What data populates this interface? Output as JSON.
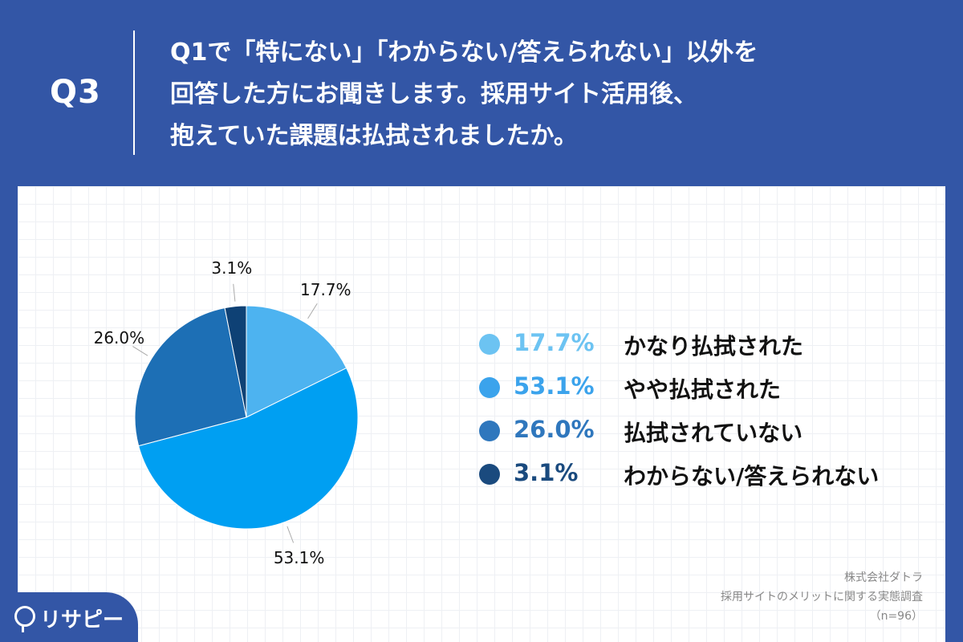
{
  "header": {
    "q_label": "Q3",
    "question_lines": [
      "Q1で「特にない」「わからない/答えられない」以外を",
      "回答した方にお聞きします。採用サイト活用後、",
      "抱えていた課題は払拭されましたか。"
    ]
  },
  "chart_data": {
    "type": "pie",
    "categories": [
      "かなり払拭された",
      "やや払拭された",
      "払拭されていない",
      "わからない/答えられない"
    ],
    "values": [
      17.7,
      53.1,
      26.0,
      3.1
    ],
    "value_labels": [
      "17.7%",
      "53.1%",
      "26.0%",
      "3.1%"
    ],
    "colors": [
      "#4db3f0",
      "#009ff2",
      "#1d6fb5",
      "#0e4175"
    ],
    "legend_dot_colors": [
      "#6cc3f2",
      "#3ba3ec",
      "#2f77bd",
      "#1a4a7e"
    ],
    "legend_placement": "right",
    "start_angle": "12 o'clock, clockwise"
  },
  "legend": [
    {
      "pct": "17.7%",
      "label": "かなり払拭された",
      "pct_color": "#6cc3f2"
    },
    {
      "pct": "53.1%",
      "label": "やや払拭された",
      "pct_color": "#3ba3ec"
    },
    {
      "pct": "26.0%",
      "label": "払拭されていない",
      "pct_color": "#2f77bd"
    },
    {
      "pct": "3.1%",
      "label": "わからない/答えられない",
      "pct_color": "#1a4a7e"
    }
  ],
  "source": {
    "company": "株式会社ダトラ",
    "survey": "採用サイトのメリットに関する実態調査",
    "sample": "（n=96）"
  },
  "brand": {
    "name": "リサピー"
  }
}
